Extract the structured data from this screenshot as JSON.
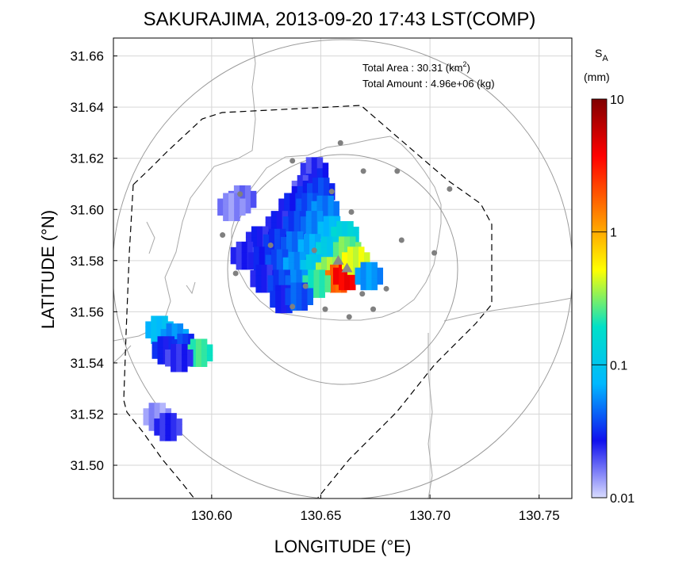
{
  "title": "SAKURAJIMA, 2013-09-20 17:43 LST(COMP)",
  "x_axis": {
    "label": "LONGITUDE (°E)",
    "ticks": [
      "130.60",
      "130.65",
      "130.70",
      "130.75"
    ],
    "range": [
      130.555,
      130.765
    ]
  },
  "y_axis": {
    "label": "LATITUDE (°N)",
    "ticks": [
      "31.50",
      "31.52",
      "31.54",
      "31.56",
      "31.58",
      "31.60",
      "31.62",
      "31.64",
      "31.66"
    ],
    "range": [
      31.487,
      31.667
    ]
  },
  "grid": true,
  "summary": {
    "area_label": "Total Area   : 30.31 (km",
    "area_sup": "2",
    "area_close": ")",
    "amount_label": "Total Amount : 4.96e+06 (kg)"
  },
  "colorbar": {
    "symbol": "S",
    "symbol_sub": "A",
    "unit": "(mm)",
    "scale": "log",
    "ticks": [
      "10",
      "1",
      "0.1",
      "0.01"
    ],
    "tick_values": [
      10,
      1,
      0.1,
      0.01
    ],
    "colors": [
      "#d9dcff",
      "#1010ee",
      "#00b8ff",
      "#00e0c8",
      "#ffff00",
      "#ff8000",
      "#ff0000",
      "#800000"
    ]
  },
  "range_rings_km": "2 rings",
  "volcano_marker": "triangle-icon",
  "stations": [
    [
      130.659,
      31.626
    ],
    [
      130.637,
      31.619
    ],
    [
      130.6695,
      31.615
    ],
    [
      130.685,
      31.615
    ],
    [
      130.709,
      31.608
    ],
    [
      130.655,
      31.607
    ],
    [
      130.613,
      31.606
    ],
    [
      130.664,
      31.599
    ],
    [
      130.605,
      31.59
    ],
    [
      130.687,
      31.588
    ],
    [
      130.647,
      31.584
    ],
    [
      130.702,
      31.583
    ],
    [
      130.627,
      31.586
    ],
    [
      130.611,
      31.575
    ],
    [
      130.643,
      31.57
    ],
    [
      130.669,
      31.567
    ],
    [
      130.68,
      31.569
    ],
    [
      130.652,
      31.561
    ],
    [
      130.637,
      31.562
    ],
    [
      130.663,
      31.558
    ],
    [
      130.674,
      31.561
    ]
  ],
  "volcano_vents": [
    [
      130.658,
      31.58
    ],
    [
      130.662,
      31.577
    ]
  ],
  "ash_fall": [
    {
      "lon": 130.647,
      "lat": 31.615,
      "v": 0.025
    },
    {
      "lon": 130.643,
      "lat": 31.608,
      "v": 0.025
    },
    {
      "lon": 130.65,
      "lat": 31.607,
      "v": 0.03
    },
    {
      "lon": 130.637,
      "lat": 31.601,
      "v": 0.025
    },
    {
      "lon": 130.645,
      "lat": 31.601,
      "v": 0.035
    },
    {
      "lon": 130.652,
      "lat": 31.6,
      "v": 0.045
    },
    {
      "lon": 130.631,
      "lat": 31.594,
      "v": 0.022
    },
    {
      "lon": 130.639,
      "lat": 31.594,
      "v": 0.03
    },
    {
      "lon": 130.647,
      "lat": 31.594,
      "v": 0.045
    },
    {
      "lon": 130.655,
      "lat": 31.592,
      "v": 0.07
    },
    {
      "lon": 130.661,
      "lat": 31.59,
      "v": 0.12
    },
    {
      "lon": 130.622,
      "lat": 31.588,
      "v": 0.022
    },
    {
      "lon": 130.63,
      "lat": 31.587,
      "v": 0.028
    },
    {
      "lon": 130.638,
      "lat": 31.586,
      "v": 0.04
    },
    {
      "lon": 130.646,
      "lat": 31.585,
      "v": 0.06
    },
    {
      "lon": 130.654,
      "lat": 31.584,
      "v": 0.1
    },
    {
      "lon": 130.662,
      "lat": 31.584,
      "v": 0.25
    },
    {
      "lon": 130.615,
      "lat": 31.582,
      "v": 0.02
    },
    {
      "lon": 130.623,
      "lat": 31.58,
      "v": 0.025
    },
    {
      "lon": 130.631,
      "lat": 31.579,
      "v": 0.035
    },
    {
      "lon": 130.639,
      "lat": 31.578,
      "v": 0.05
    },
    {
      "lon": 130.647,
      "lat": 31.577,
      "v": 0.09
    },
    {
      "lon": 130.654,
      "lat": 31.576,
      "v": 0.3
    },
    {
      "lon": 130.658,
      "lat": 31.573,
      "v": 1.5
    },
    {
      "lon": 130.662,
      "lat": 31.574,
      "v": 3.5
    },
    {
      "lon": 130.666,
      "lat": 31.58,
      "v": 0.4
    },
    {
      "lon": 130.624,
      "lat": 31.573,
      "v": 0.022
    },
    {
      "lon": 130.632,
      "lat": 31.571,
      "v": 0.03
    },
    {
      "lon": 130.64,
      "lat": 31.571,
      "v": 0.045
    },
    {
      "lon": 130.648,
      "lat": 31.571,
      "v": 0.2
    },
    {
      "lon": 130.633,
      "lat": 31.565,
      "v": 0.025
    },
    {
      "lon": 130.64,
      "lat": 31.566,
      "v": 0.035
    },
    {
      "lon": 130.672,
      "lat": 31.574,
      "v": 0.05
    },
    {
      "lon": 130.576,
      "lat": 31.553,
      "v": 0.07
    },
    {
      "lon": 130.583,
      "lat": 31.55,
      "v": 0.05
    },
    {
      "lon": 130.579,
      "lat": 31.545,
      "v": 0.025
    },
    {
      "lon": 130.588,
      "lat": 31.546,
      "v": 0.03
    },
    {
      "lon": 130.594,
      "lat": 31.544,
      "v": 0.2
    },
    {
      "lon": 130.585,
      "lat": 31.542,
      "v": 0.02
    },
    {
      "lon": 130.614,
      "lat": 31.604,
      "v": 0.015
    },
    {
      "lon": 130.609,
      "lat": 31.601,
      "v": 0.013
    },
    {
      "lon": 130.575,
      "lat": 31.519,
      "v": 0.012
    },
    {
      "lon": 130.58,
      "lat": 31.515,
      "v": 0.02
    }
  ]
}
